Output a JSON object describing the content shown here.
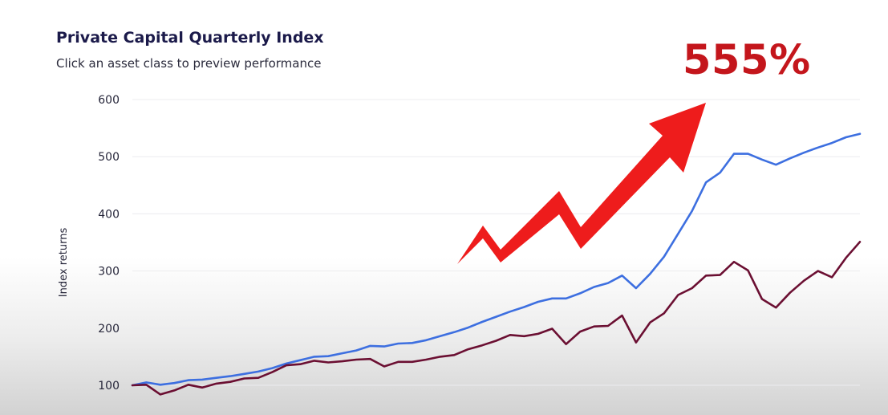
{
  "header": {
    "title": "Private Capital Quarterly Index",
    "subtitle": "Click an asset class to preview performance"
  },
  "annotation": {
    "text": "555%",
    "color": "#c4161c",
    "arrow_color": "#ee1c1c",
    "arrow_icon": "zigzag-up-arrow"
  },
  "chart_data": {
    "type": "line",
    "title": "Private Capital Quarterly Index",
    "subtitle": "Click an asset class to preview performance",
    "xlabel": "",
    "ylabel": "Index returns",
    "ylim": [
      100,
      600
    ],
    "yticks": [
      100,
      200,
      300,
      400,
      500,
      600
    ],
    "grid": true,
    "series": [
      {
        "color": "#3d6fe0",
        "values": [
          100,
          105,
          101,
          104,
          109,
          110,
          113,
          116,
          120,
          124,
          130,
          138,
          144,
          150,
          151,
          156,
          161,
          169,
          168,
          173,
          174,
          179,
          186,
          193,
          201,
          211,
          220,
          229,
          237,
          246,
          252,
          252,
          261,
          272,
          279,
          292,
          270,
          295,
          325,
          365,
          405,
          455,
          472,
          505,
          505,
          495,
          486,
          497,
          507,
          516,
          524,
          534,
          540
        ]
      },
      {
        "color": "#6b0f32",
        "values": [
          100,
          101,
          84,
          91,
          101,
          96,
          103,
          106,
          112,
          113,
          123,
          135,
          137,
          143,
          140,
          142,
          145,
          146,
          133,
          141,
          141,
          145,
          150,
          153,
          163,
          170,
          178,
          188,
          186,
          190,
          199,
          172,
          194,
          203,
          204,
          222,
          175,
          210,
          226,
          258,
          270,
          292,
          293,
          316,
          301,
          251,
          236,
          262,
          283,
          300,
          289,
          323,
          351
        ]
      }
    ]
  }
}
